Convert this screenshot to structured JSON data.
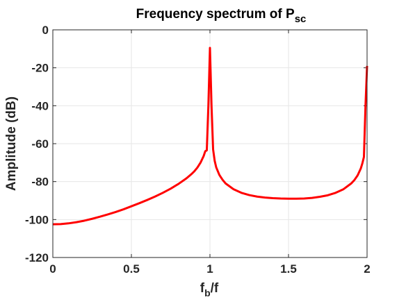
{
  "chart_data": {
    "type": "line",
    "title": "Frequency spectrum of P",
    "title_subscript": "sc",
    "xlabel": "f",
    "xlabel_subscript": "b",
    "xlabel_suffix": "/f",
    "ylabel": "Amplitude (dB)",
    "xlim": [
      0,
      2
    ],
    "ylim": [
      -120,
      0
    ],
    "x_ticks": [
      0,
      0.5,
      1,
      1.5,
      2
    ],
    "x_tick_labels": [
      "0",
      "0.5",
      "1",
      "1.5",
      "2"
    ],
    "y_ticks": [
      0,
      -20,
      -40,
      -60,
      -80,
      -100,
      -120
    ],
    "y_tick_labels": [
      "0",
      "-20",
      "-40",
      "-60",
      "-80",
      "-100",
      "-120"
    ],
    "grid": true,
    "box": true,
    "series": [
      {
        "color": "#ff0000",
        "x": [
          0,
          0.05,
          0.1,
          0.15,
          0.2,
          0.25,
          0.3,
          0.35,
          0.4,
          0.45,
          0.5,
          0.55,
          0.6,
          0.65,
          0.7,
          0.75,
          0.8,
          0.85,
          0.88,
          0.9,
          0.92,
          0.94,
          0.96,
          0.97,
          0.98,
          0.99,
          1.0,
          1.01,
          1.02,
          1.03,
          1.04,
          1.06,
          1.08,
          1.1,
          1.15,
          1.2,
          1.25,
          1.3,
          1.35,
          1.4,
          1.45,
          1.5,
          1.55,
          1.6,
          1.65,
          1.7,
          1.75,
          1.8,
          1.85,
          1.9,
          1.92,
          1.94,
          1.96,
          1.97,
          1.98,
          1.99,
          2.0
        ],
        "y": [
          -102.5,
          -102.4,
          -102.0,
          -101.4,
          -100.6,
          -99.6,
          -98.5,
          -97.3,
          -96.0,
          -94.6,
          -93.0,
          -91.4,
          -89.7,
          -87.9,
          -85.9,
          -83.7,
          -81.2,
          -78.3,
          -76.2,
          -74.6,
          -72.6,
          -70.0,
          -66.5,
          -64.0,
          -63.5,
          -40.0,
          -9.5,
          -40.0,
          -63.0,
          -69.0,
          -72.5,
          -76.5,
          -79.0,
          -81.0,
          -84.0,
          -85.9,
          -87.1,
          -87.9,
          -88.4,
          -88.7,
          -88.9,
          -89.0,
          -89.0,
          -88.9,
          -88.6,
          -88.0,
          -87.2,
          -85.9,
          -84.0,
          -80.9,
          -79.1,
          -76.7,
          -73.1,
          -70.4,
          -67.0,
          -40.0,
          -19.0
        ]
      }
    ]
  }
}
